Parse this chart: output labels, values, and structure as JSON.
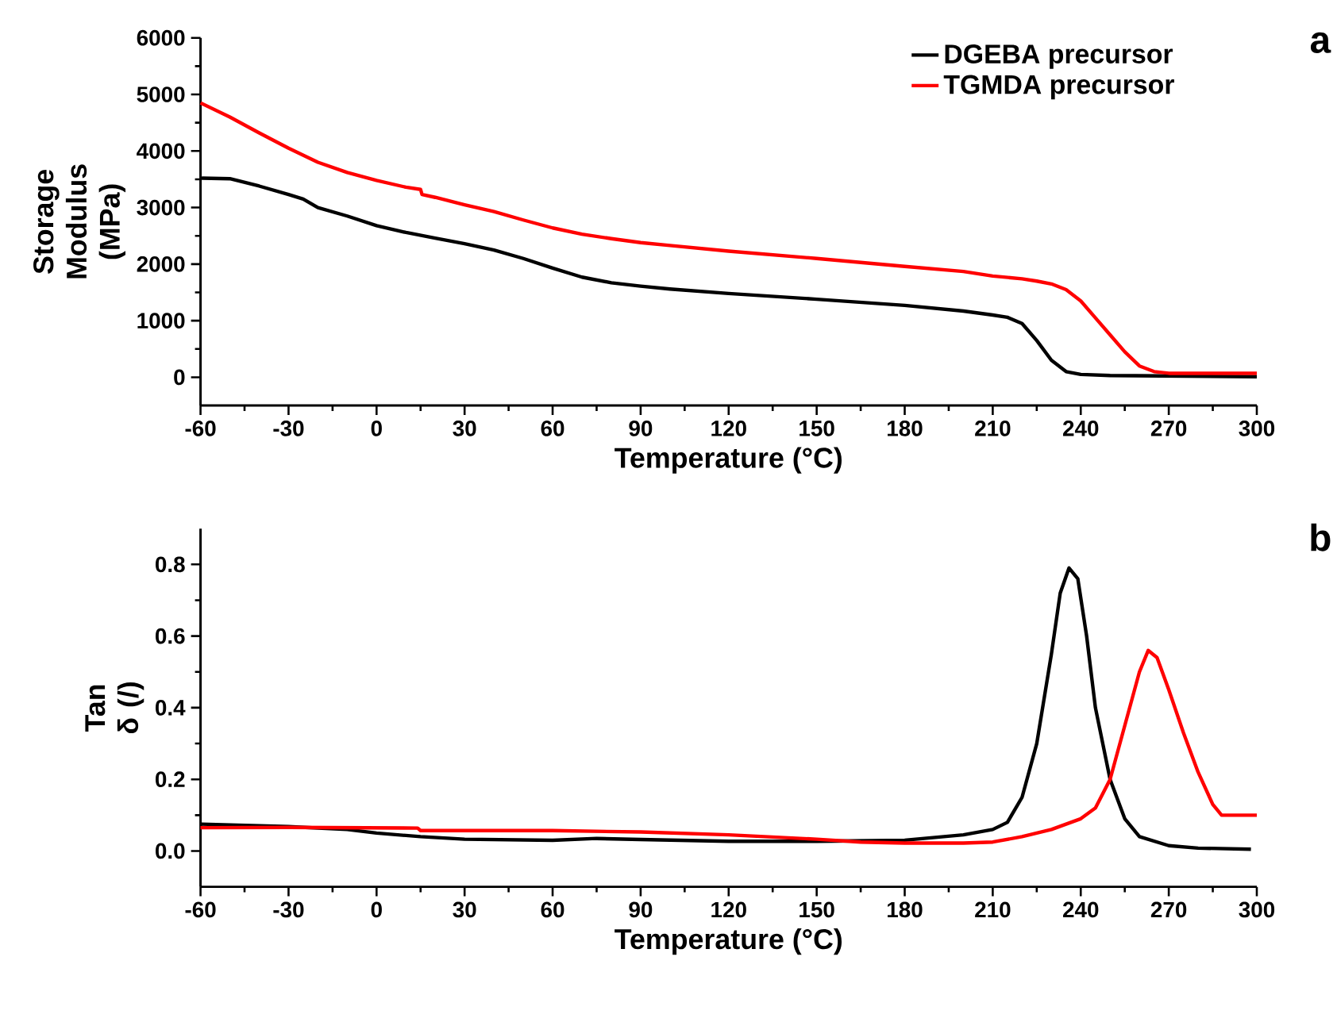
{
  "chart_data": [
    {
      "type": "line",
      "xlabel": "Temperature (°C)",
      "ylabel": "Storage Modulus (MPa)",
      "xlim": [
        -60,
        300
      ],
      "ylim": [
        -500,
        6000
      ],
      "xticks": [
        -60,
        -30,
        0,
        30,
        60,
        90,
        120,
        150,
        180,
        210,
        240,
        270,
        300
      ],
      "yticks": [
        0,
        1000,
        2000,
        3000,
        4000,
        5000,
        6000
      ],
      "legend": "top right",
      "annotations": [
        "a"
      ],
      "series": [
        {
          "name": "DGEBA precursor",
          "color": "#000000",
          "x": [
            -60,
            -50,
            -40,
            -30,
            -25,
            -20,
            -10,
            0,
            10,
            20,
            30,
            40,
            50,
            60,
            70,
            80,
            90,
            100,
            120,
            150,
            180,
            200,
            210,
            215,
            220,
            225,
            230,
            235,
            240,
            250,
            300
          ],
          "values": [
            3520,
            3510,
            3380,
            3230,
            3150,
            3000,
            2850,
            2680,
            2560,
            2460,
            2360,
            2250,
            2100,
            1930,
            1770,
            1670,
            1610,
            1560,
            1480,
            1380,
            1270,
            1170,
            1100,
            1060,
            950,
            650,
            300,
            100,
            50,
            30,
            10
          ]
        },
        {
          "name": "TGMDA precursor",
          "color": "#ff0000",
          "x": [
            -60,
            -50,
            -40,
            -30,
            -20,
            -10,
            0,
            10,
            15,
            15.5,
            20,
            30,
            40,
            50,
            60,
            70,
            80,
            90,
            100,
            120,
            150,
            180,
            200,
            210,
            220,
            225,
            230,
            235,
            240,
            245,
            250,
            255,
            260,
            265,
            270,
            300
          ],
          "values": [
            4850,
            4600,
            4320,
            4050,
            3800,
            3620,
            3480,
            3360,
            3320,
            3230,
            3180,
            3050,
            2930,
            2780,
            2640,
            2530,
            2450,
            2380,
            2330,
            2230,
            2100,
            1960,
            1870,
            1790,
            1740,
            1700,
            1650,
            1550,
            1350,
            1050,
            750,
            450,
            200,
            100,
            70,
            70
          ]
        }
      ]
    },
    {
      "type": "line",
      "xlabel": "Temperature (°C)",
      "ylabel": "Tan δ (/)",
      "xlim": [
        -60,
        300
      ],
      "ylim": [
        -0.1,
        0.9
      ],
      "xticks": [
        -60,
        -30,
        0,
        30,
        60,
        90,
        120,
        150,
        180,
        210,
        240,
        270,
        300
      ],
      "yticks": [
        {
          "value": 0,
          "label": "0.0"
        },
        0.2,
        0.4,
        0.6,
        0.8
      ],
      "annotations": [
        "b"
      ],
      "series": [
        {
          "color": "#000000",
          "x": [
            -60,
            -30,
            -10,
            0,
            15,
            30,
            60,
            75,
            90,
            120,
            150,
            180,
            200,
            210,
            215,
            220,
            225,
            230,
            233,
            236,
            239,
            242,
            245,
            250,
            255,
            260,
            270,
            280,
            298
          ],
          "values": [
            0.075,
            0.068,
            0.06,
            0.05,
            0.04,
            0.033,
            0.03,
            0.035,
            0.032,
            0.027,
            0.027,
            0.03,
            0.045,
            0.06,
            0.08,
            0.15,
            0.3,
            0.55,
            0.72,
            0.79,
            0.76,
            0.6,
            0.4,
            0.2,
            0.09,
            0.04,
            0.015,
            0.008,
            0.005
          ]
        },
        {
          "color": "#ff0000",
          "x": [
            -60,
            -30,
            14,
            15,
            60,
            90,
            120,
            150,
            165,
            180,
            200,
            210,
            220,
            230,
            240,
            245,
            250,
            255,
            260,
            263,
            266,
            270,
            275,
            280,
            285,
            288,
            300
          ],
          "values": [
            0.065,
            0.066,
            0.064,
            0.057,
            0.057,
            0.053,
            0.045,
            0.033,
            0.025,
            0.022,
            0.022,
            0.025,
            0.04,
            0.06,
            0.09,
            0.12,
            0.2,
            0.35,
            0.5,
            0.56,
            0.54,
            0.45,
            0.33,
            0.22,
            0.13,
            0.1,
            0.1
          ]
        }
      ]
    }
  ]
}
